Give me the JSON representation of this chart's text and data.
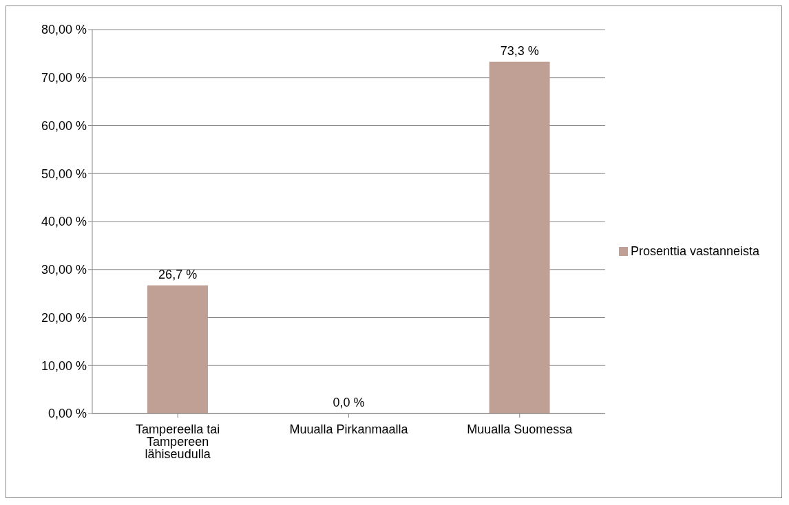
{
  "chart_data": {
    "type": "bar",
    "categories": [
      "Tampereella tai Tampereen lähiseudulla",
      "Muualla Pirkanmaalla",
      "Muualla Suomessa"
    ],
    "series": [
      {
        "name": "Prosenttia vastanneista",
        "color": "#c0a095",
        "values": [
          26.7,
          0.0,
          73.3
        ],
        "value_labels": [
          "26,7 %",
          "0,0 %",
          "73,3 %"
        ]
      }
    ],
    "ylim": [
      0,
      80
    ],
    "yticks": [
      {
        "value": 0,
        "label": "0,00 %"
      },
      {
        "value": 10,
        "label": "10,00 %"
      },
      {
        "value": 20,
        "label": "20,00 %"
      },
      {
        "value": 30,
        "label": "30,00 %"
      },
      {
        "value": 40,
        "label": "40,00 %"
      },
      {
        "value": 50,
        "label": "50,00 %"
      },
      {
        "value": 60,
        "label": "60,00 %"
      },
      {
        "value": 70,
        "label": "70,00 %"
      },
      {
        "value": 80,
        "label": "80,00 %"
      }
    ],
    "grid": "y",
    "legend": "right"
  }
}
